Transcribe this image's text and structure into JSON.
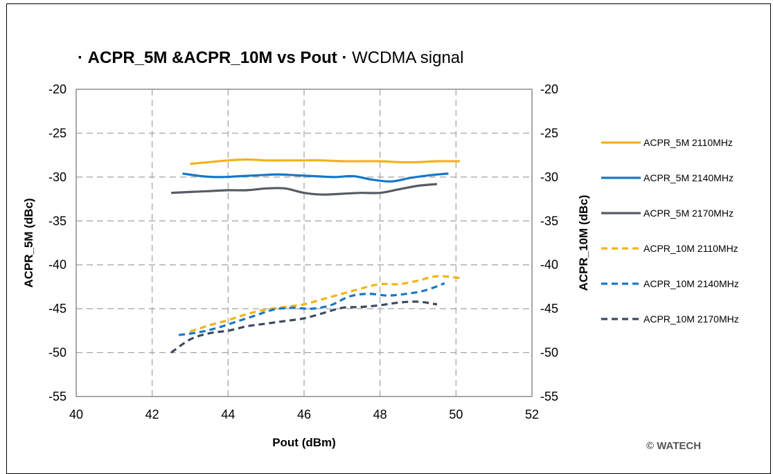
{
  "chart_data": {
    "type": "line",
    "title": "ACPR_5M &ACPR_10M vs Pout",
    "title_prefix": "·",
    "title_suffix": "·",
    "subtitle": "WCDMA signal",
    "xlabel": "Pout (dBm)",
    "ylabel": "ACPR_5M (dBc)",
    "y2label": "ACPR_10M (dBc)",
    "xlim": [
      40,
      52
    ],
    "ylim": [
      -55,
      -20
    ],
    "y2lim": [
      -55,
      -20
    ],
    "x_ticks": [
      "40",
      "42",
      "44",
      "46",
      "48",
      "50",
      "52"
    ],
    "y_ticks": [
      "-20",
      "-25",
      "-30",
      "-35",
      "-40",
      "-45",
      "-50",
      "-55"
    ],
    "y2_ticks": [
      "-20",
      "-25",
      "-30",
      "-35",
      "-40",
      "-45",
      "-50",
      "-55"
    ],
    "grid": true,
    "legend_position": "right",
    "series": [
      {
        "name": "ACPR_5M 2110MHz",
        "axis": "left",
        "color": "#f2b318",
        "dash": false,
        "x": [
          43.0,
          43.5,
          44.0,
          44.5,
          45.0,
          45.5,
          46.0,
          46.5,
          47.0,
          47.5,
          48.0,
          48.5,
          49.0,
          49.5,
          50.1
        ],
        "y": [
          -28.5,
          -28.3,
          -28.1,
          -28.0,
          -28.1,
          -28.1,
          -28.1,
          -28.1,
          -28.2,
          -28.2,
          -28.2,
          -28.3,
          -28.3,
          -28.2,
          -28.2
        ]
      },
      {
        "name": "ACPR_5M 2140MHz",
        "axis": "left",
        "color": "#1777c8",
        "dash": false,
        "x": [
          42.8,
          43.3,
          43.8,
          44.3,
          44.8,
          45.3,
          45.8,
          46.3,
          46.8,
          47.3,
          47.8,
          48.3,
          48.8,
          49.3,
          49.8
        ],
        "y": [
          -29.6,
          -29.9,
          -30.0,
          -29.9,
          -29.8,
          -29.7,
          -29.8,
          -29.9,
          -30.0,
          -29.9,
          -30.3,
          -30.5,
          -30.1,
          -29.8,
          -29.6
        ]
      },
      {
        "name": "ACPR_5M 2170MHz",
        "axis": "left",
        "color": "#575b66",
        "dash": false,
        "x": [
          42.5,
          43.0,
          43.5,
          44.0,
          44.5,
          45.0,
          45.5,
          46.0,
          46.5,
          47.0,
          47.5,
          48.0,
          48.5,
          49.0,
          49.5
        ],
        "y": [
          -31.8,
          -31.7,
          -31.6,
          -31.5,
          -31.5,
          -31.3,
          -31.3,
          -31.8,
          -32.0,
          -31.9,
          -31.8,
          -31.8,
          -31.4,
          -31.0,
          -30.8
        ]
      },
      {
        "name": "ACPR_10M 2110MHz",
        "axis": "right",
        "color": "#f2b318",
        "dash": true,
        "x": [
          43.0,
          43.5,
          44.0,
          44.5,
          45.0,
          45.5,
          46.0,
          46.5,
          47.0,
          47.5,
          48.0,
          48.5,
          49.0,
          49.5,
          50.1
        ],
        "y": [
          -47.6,
          -46.9,
          -46.3,
          -45.6,
          -45.1,
          -44.8,
          -44.5,
          -43.9,
          -43.3,
          -42.7,
          -42.2,
          -42.2,
          -41.8,
          -41.3,
          -41.5
        ]
      },
      {
        "name": "ACPR_10M 2140MHz",
        "axis": "right",
        "color": "#1777c8",
        "dash": true,
        "x": [
          42.7,
          43.2,
          43.7,
          44.2,
          44.7,
          45.2,
          45.7,
          46.2,
          46.7,
          47.2,
          47.7,
          48.2,
          48.7,
          49.2,
          49.7
        ],
        "y": [
          -48.0,
          -47.7,
          -47.2,
          -46.5,
          -45.8,
          -45.1,
          -44.9,
          -45.0,
          -44.6,
          -43.6,
          -43.3,
          -43.5,
          -43.3,
          -42.9,
          -42.1
        ]
      },
      {
        "name": "ACPR_10M 2170MHz",
        "axis": "right",
        "color": "#3c4a60",
        "dash": true,
        "x": [
          42.5,
          43.0,
          43.5,
          44.0,
          44.5,
          45.0,
          45.5,
          46.0,
          46.5,
          47.0,
          47.5,
          48.0,
          48.5,
          49.0,
          49.5
        ],
        "y": [
          -50.0,
          -48.5,
          -47.8,
          -47.5,
          -47.0,
          -46.7,
          -46.4,
          -46.1,
          -45.5,
          -44.9,
          -44.8,
          -44.6,
          -44.3,
          -44.2,
          -44.5
        ]
      }
    ]
  },
  "watermark": "© WATECH"
}
